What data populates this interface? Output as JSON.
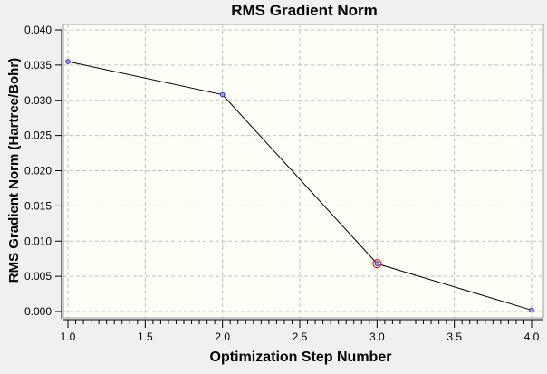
{
  "chart_data": {
    "type": "line",
    "title": "RMS Gradient Norm",
    "xlabel": "Optimization Step Number",
    "ylabel": "RMS Gradient Norm (Hartree/Bohr)",
    "xlim": [
      1.0,
      4.0
    ],
    "ylim": [
      0.0,
      0.04
    ],
    "xticks": [
      "1.0",
      "1.5",
      "2.0",
      "2.5",
      "3.0",
      "3.5",
      "4.0"
    ],
    "yticks": [
      "0.000",
      "0.005",
      "0.010",
      "0.015",
      "0.020",
      "0.025",
      "0.030",
      "0.035",
      "0.040"
    ],
    "grid": true,
    "x": [
      1,
      2,
      3,
      4
    ],
    "values": [
      0.0355,
      0.0308,
      0.0068,
      0.0002
    ],
    "selected_point_index": 2,
    "colors": {
      "line": "#000000",
      "point": "#3030c0",
      "selected": "#e02020",
      "plot_bg": "#fefef6",
      "grid": "#c0c0c0"
    }
  }
}
